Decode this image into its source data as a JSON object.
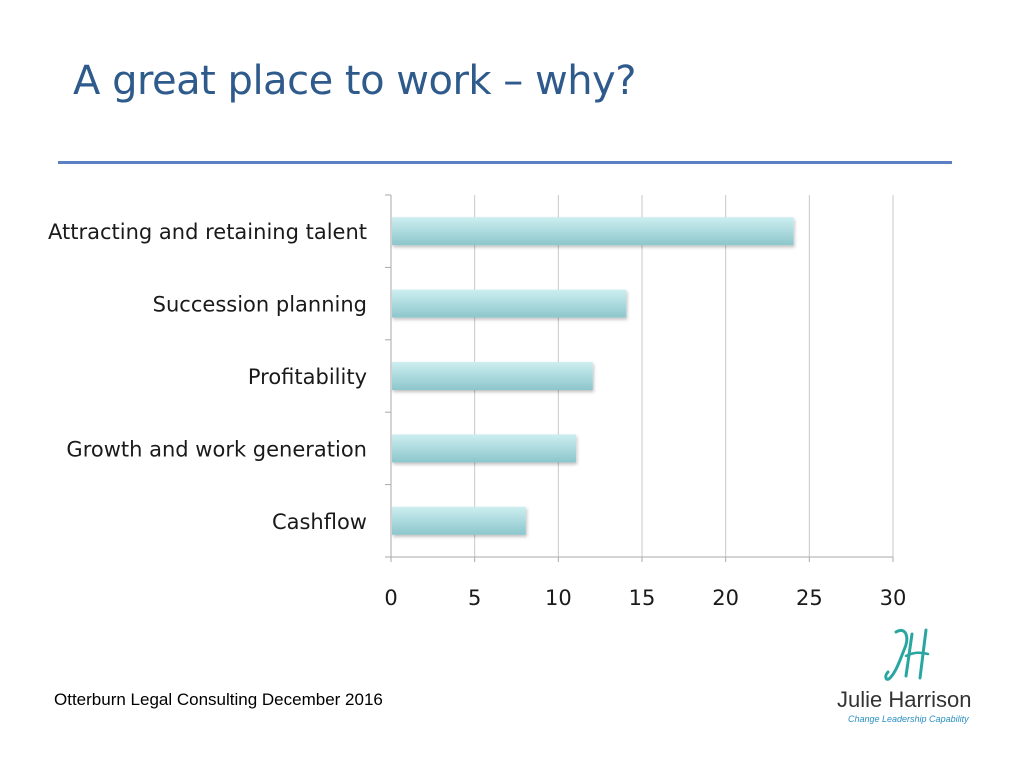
{
  "slide": {
    "title": "A great place to work – why?",
    "footer": "Otterburn Legal Consulting December 2016",
    "title_color": "#2e5a8c",
    "rule_color": "#5b80c4"
  },
  "logo": {
    "name": "Julie Harrison",
    "tagline": "Change Leadership Capability",
    "mark_icon": "jh-monogram",
    "mark_color": "#2aa6a0",
    "tagline_color": "#2a8fc0"
  },
  "chart_data": {
    "type": "bar",
    "orientation": "horizontal",
    "categories": [
      "Attracting and retaining talent",
      "Succession planning",
      "Profitability",
      "Growth and work generation",
      "Cashflow"
    ],
    "values": [
      24,
      14,
      12,
      11,
      8
    ],
    "xlim": [
      0,
      30
    ],
    "x_ticks": [
      "0",
      "5",
      "10",
      "15",
      "20",
      "25",
      "30"
    ],
    "grid": "vertical",
    "legend": "none",
    "bar_color": "#a9d8dc"
  }
}
